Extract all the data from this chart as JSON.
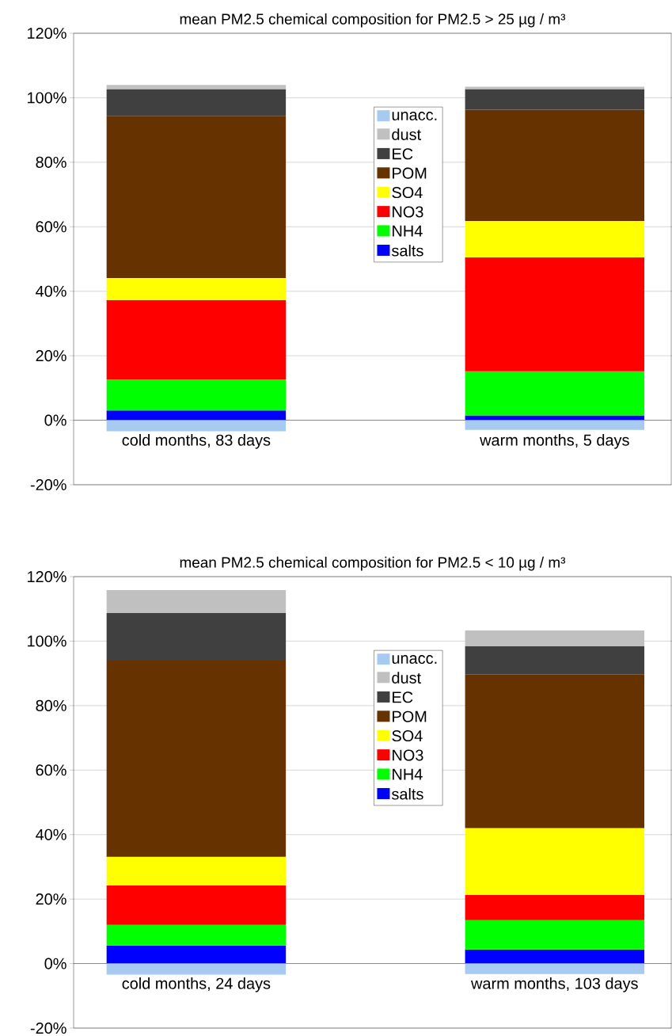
{
  "chart_data": [
    {
      "type": "bar",
      "stacked": true,
      "title": "mean PM2.5 chemical composition for PM2.5 > 25 µg / m³",
      "categories": [
        "cold months, 83 days",
        "warm months, 5 days"
      ],
      "series": [
        {
          "name": "salts",
          "color": "#0000ff",
          "values": [
            3.0,
            1.5
          ]
        },
        {
          "name": "NH4",
          "color": "#00ff00",
          "values": [
            9.7,
            13.7
          ]
        },
        {
          "name": "NO3",
          "color": "#ff0000",
          "values": [
            24.6,
            35.3
          ]
        },
        {
          "name": "SO4",
          "color": "#ffff00",
          "values": [
            6.8,
            11.3
          ]
        },
        {
          "name": "POM",
          "color": "#663300",
          "values": [
            50.3,
            34.5
          ]
        },
        {
          "name": "EC",
          "color": "#404040",
          "values": [
            8.3,
            6.4
          ]
        },
        {
          "name": "dust",
          "color": "#c0c0c0",
          "values": [
            1.3,
            0.7
          ]
        },
        {
          "name": "unacc.",
          "color": "#a6caf0",
          "values": [
            -3.4,
            -3.0
          ]
        }
      ],
      "ylim": [
        -20,
        120
      ],
      "yticks": [
        {
          "value": -20,
          "label": "-20%"
        },
        {
          "value": 0,
          "label": "0%"
        },
        {
          "value": 20,
          "label": "20%"
        },
        {
          "value": 40,
          "label": "40%"
        },
        {
          "value": 60,
          "label": "60%"
        },
        {
          "value": 80,
          "label": "80%"
        },
        {
          "value": 100,
          "label": "100%"
        },
        {
          "value": 120,
          "label": "120%"
        }
      ],
      "grid": "y",
      "legend": "top"
    },
    {
      "type": "bar",
      "stacked": true,
      "title": "mean PM2.5 chemical composition for PM2.5 < 10 µg / m³",
      "categories": [
        "cold months, 24 days",
        "warm months, 103 days"
      ],
      "series": [
        {
          "name": "salts",
          "color": "#0000ff",
          "values": [
            5.6,
            4.4
          ]
        },
        {
          "name": "NH4",
          "color": "#00ff00",
          "values": [
            6.4,
            9.1
          ]
        },
        {
          "name": "NO3",
          "color": "#ff0000",
          "values": [
            12.3,
            7.8
          ]
        },
        {
          "name": "SO4",
          "color": "#ffff00",
          "values": [
            8.8,
            20.7
          ]
        },
        {
          "name": "POM",
          "color": "#663300",
          "values": [
            60.9,
            47.6
          ]
        },
        {
          "name": "EC",
          "color": "#404040",
          "values": [
            14.7,
            8.8
          ]
        },
        {
          "name": "dust",
          "color": "#c0c0c0",
          "values": [
            7.1,
            4.9
          ]
        },
        {
          "name": "unacc.",
          "color": "#a6caf0",
          "values": [
            -3.4,
            -3.2
          ]
        }
      ],
      "ylim": [
        -20,
        120
      ],
      "yticks": [
        {
          "value": -20,
          "label": "-20%"
        },
        {
          "value": 0,
          "label": "0%"
        },
        {
          "value": 20,
          "label": "20%"
        },
        {
          "value": 40,
          "label": "40%"
        },
        {
          "value": 60,
          "label": "60%"
        },
        {
          "value": 80,
          "label": "80%"
        },
        {
          "value": 100,
          "label": "100%"
        },
        {
          "value": 120,
          "label": "120%"
        }
      ],
      "grid": "y",
      "legend": "top"
    }
  ]
}
